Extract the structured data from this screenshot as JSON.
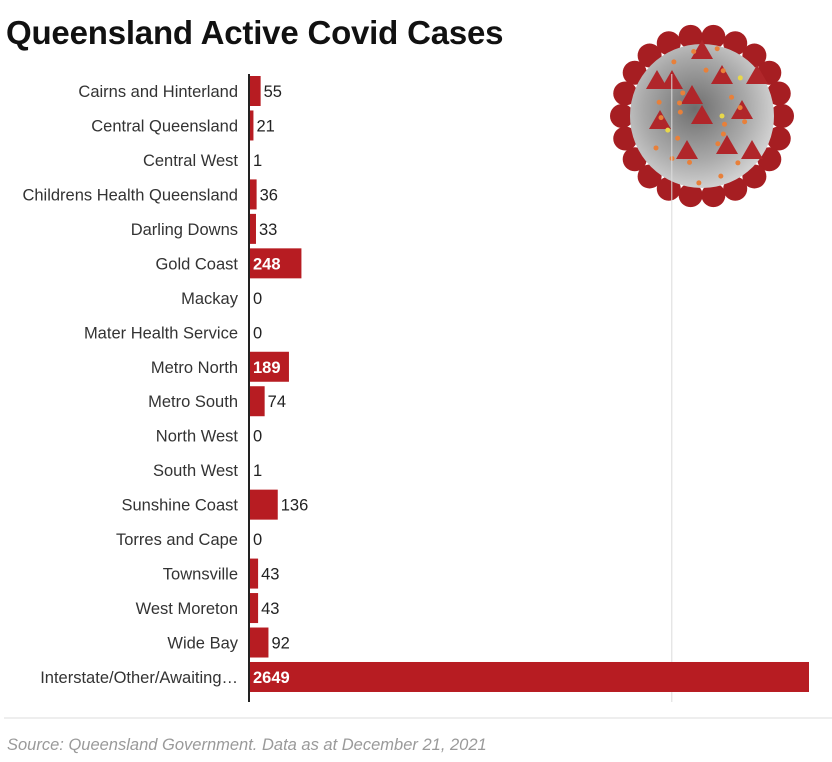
{
  "chart_data": {
    "type": "bar",
    "orientation": "horizontal",
    "title": "Queensland Active Covid Cases",
    "categories": [
      "Cairns and Hinterland",
      "Central Queensland",
      "Central West",
      "Childrens Health Queensland",
      "Darling Downs",
      "Gold Coast",
      "Mackay",
      "Mater Health Service",
      "Metro North",
      "Metro South",
      "North West",
      "South West",
      "Sunshine Coast",
      "Torres and Cape",
      "Townsville",
      "West Moreton",
      "Wide Bay",
      "Interstate/Other/Awaiting…"
    ],
    "values": [
      55,
      21,
      1,
      36,
      33,
      248,
      0,
      0,
      189,
      74,
      0,
      1,
      136,
      0,
      43,
      43,
      92,
      2649
    ],
    "xlim": [
      0,
      2650
    ],
    "gridlines": [
      2000
    ],
    "grid": true,
    "data_labels": true,
    "bar_color": "#b71c22"
  },
  "source": "Source: Queensland Government. Data as at December  21, 2021",
  "image": {
    "icon": "coronavirus-illustration"
  }
}
